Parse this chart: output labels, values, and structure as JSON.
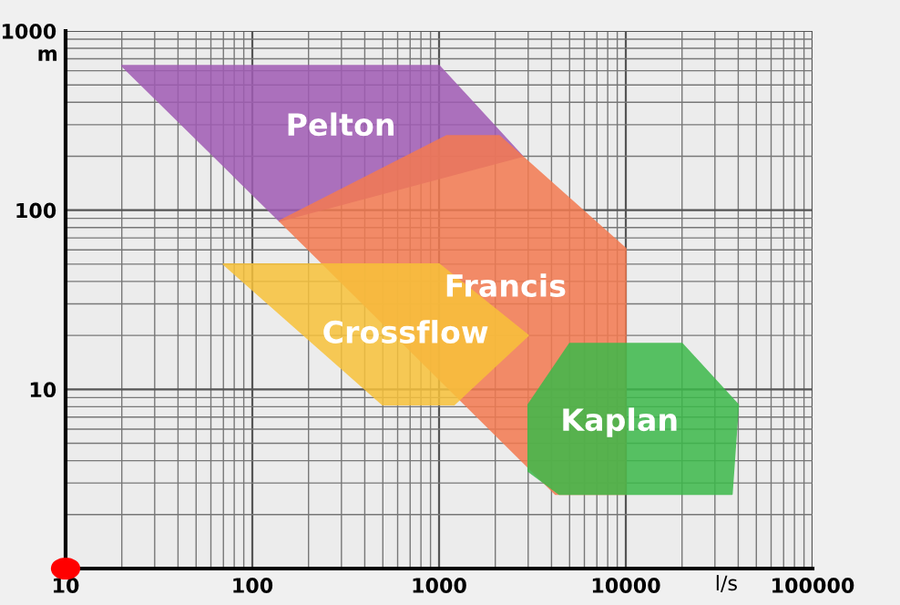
{
  "chart_data": {
    "type": "area",
    "xlabel": "l/s",
    "ylabel": "m",
    "log": "xy",
    "grid": true,
    "legend": false,
    "xlim": [
      10,
      100000
    ],
    "ylim": [
      1,
      1000
    ],
    "xticks": [
      10,
      100,
      1000,
      10000,
      100000
    ],
    "yticks": [
      {
        "value": 1,
        "label": null
      },
      10,
      100,
      1000
    ],
    "series": [
      {
        "name": "Pelton",
        "color": "#a05bb4",
        "x": [
          20,
          1000,
          2800,
          140
        ],
        "values": [
          640,
          640,
          200,
          87
        ]
      },
      {
        "name": "Francis",
        "color": "#f47a50",
        "x": [
          140,
          1100,
          2100,
          10000,
          10000,
          4200
        ],
        "values": [
          87,
          260,
          260,
          61,
          2.6,
          2.6
        ]
      },
      {
        "name": "Crossflow",
        "color": "#f8c23a",
        "x": [
          70,
          1000,
          3000,
          1200,
          500
        ],
        "values": [
          50,
          50,
          20,
          8.2,
          8.2
        ]
      },
      {
        "name": "Kaplan",
        "color": "#3cb94a",
        "x": [
          5000,
          20000,
          40000,
          37000,
          4400,
          3000,
          3000
        ],
        "values": [
          18,
          18,
          8.2,
          2.6,
          2.6,
          3.5,
          8.2
        ]
      }
    ]
  }
}
